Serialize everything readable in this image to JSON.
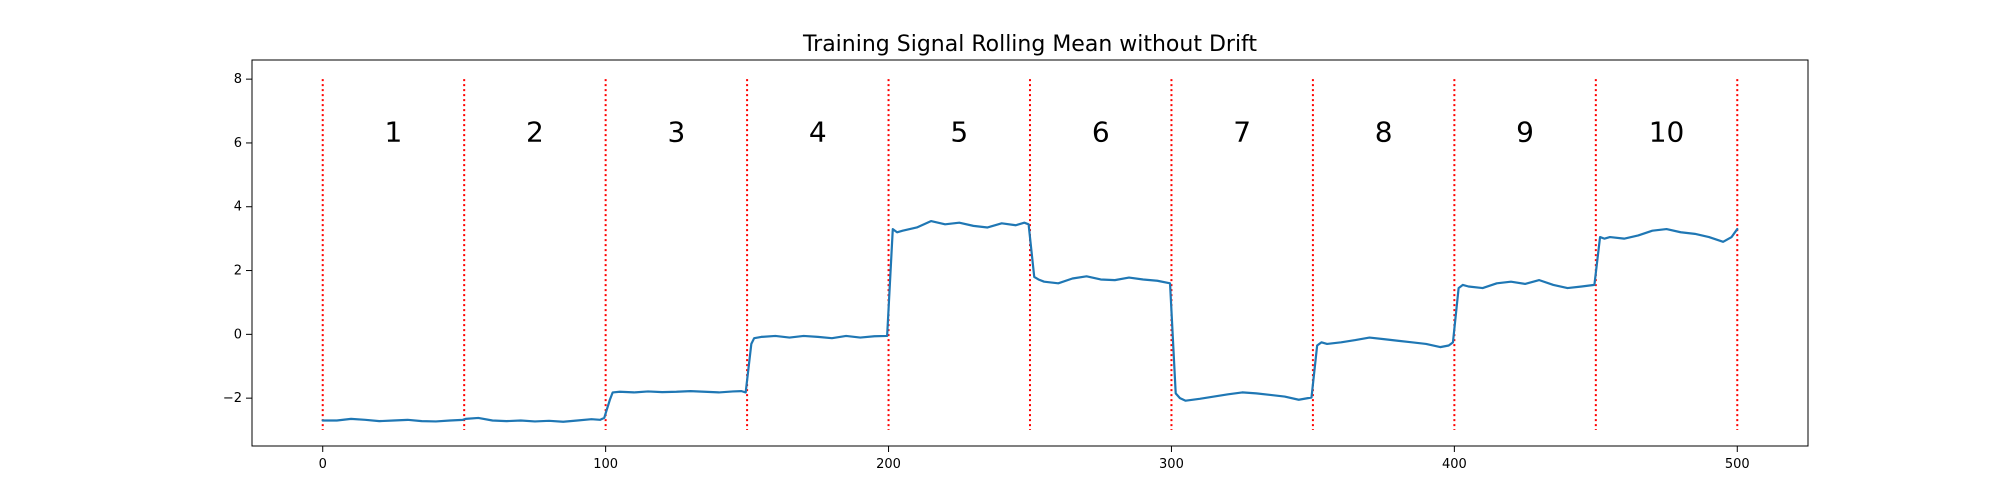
{
  "chart_data": {
    "type": "line",
    "title": "Training Signal Rolling Mean without Drift",
    "xlabel": "",
    "ylabel": "",
    "xlim": [
      -25,
      525
    ],
    "ylim": [
      -3.5,
      8.6
    ],
    "grid": false,
    "x_ticks": [
      0,
      100,
      200,
      300,
      400,
      500
    ],
    "x_tick_labels": [
      "0",
      "100",
      "200",
      "300",
      "400",
      "500"
    ],
    "y_ticks": [
      -2,
      0,
      2,
      4,
      6,
      8
    ],
    "y_tick_labels": [
      "−2",
      "0",
      "2",
      "4",
      "6",
      "8"
    ],
    "vertical_lines": {
      "x": [
        0,
        50,
        100,
        150,
        200,
        250,
        300,
        350,
        400,
        450,
        500
      ],
      "ymin": -3.0,
      "ymax": 8.0,
      "color": "#ff0000",
      "style": "dotted"
    },
    "segments": {
      "labels": [
        "1",
        "2",
        "3",
        "4",
        "5",
        "6",
        "7",
        "8",
        "9",
        "10"
      ],
      "label_y": 6.3
    },
    "series": [
      {
        "color": "#1f77b4",
        "points": [
          [
            0,
            -2.7
          ],
          [
            5,
            -2.7
          ],
          [
            10,
            -2.65
          ],
          [
            15,
            -2.68
          ],
          [
            20,
            -2.72
          ],
          [
            25,
            -2.7
          ],
          [
            30,
            -2.68
          ],
          [
            35,
            -2.72
          ],
          [
            40,
            -2.73
          ],
          [
            45,
            -2.7
          ],
          [
            49.5,
            -2.68
          ],
          [
            50.5,
            -2.65
          ],
          [
            55,
            -2.62
          ],
          [
            60,
            -2.7
          ],
          [
            65,
            -2.72
          ],
          [
            70,
            -2.7
          ],
          [
            75,
            -2.73
          ],
          [
            80,
            -2.71
          ],
          [
            85,
            -2.74
          ],
          [
            90,
            -2.7
          ],
          [
            95,
            -2.66
          ],
          [
            98,
            -2.68
          ],
          [
            99.5,
            -2.62
          ],
          [
            101.5,
            -2.05
          ],
          [
            102.5,
            -1.82
          ],
          [
            105,
            -1.8
          ],
          [
            110,
            -1.82
          ],
          [
            115,
            -1.79
          ],
          [
            120,
            -1.81
          ],
          [
            125,
            -1.8
          ],
          [
            130,
            -1.78
          ],
          [
            135,
            -1.8
          ],
          [
            140,
            -1.82
          ],
          [
            145,
            -1.79
          ],
          [
            148,
            -1.78
          ],
          [
            149.5,
            -1.82
          ],
          [
            151.5,
            -0.3
          ],
          [
            152.5,
            -0.12
          ],
          [
            155,
            -0.08
          ],
          [
            160,
            -0.05
          ],
          [
            165,
            -0.1
          ],
          [
            170,
            -0.05
          ],
          [
            175,
            -0.08
          ],
          [
            180,
            -0.12
          ],
          [
            185,
            -0.05
          ],
          [
            190,
            -0.1
          ],
          [
            195,
            -0.06
          ],
          [
            199.5,
            -0.05
          ],
          [
            201.5,
            3.3
          ],
          [
            203,
            3.2
          ],
          [
            205,
            3.25
          ],
          [
            210,
            3.35
          ],
          [
            215,
            3.55
          ],
          [
            220,
            3.45
          ],
          [
            225,
            3.5
          ],
          [
            230,
            3.4
          ],
          [
            235,
            3.35
          ],
          [
            240,
            3.48
          ],
          [
            245,
            3.42
          ],
          [
            248,
            3.5
          ],
          [
            249.5,
            3.45
          ],
          [
            251.5,
            1.8
          ],
          [
            253,
            1.72
          ],
          [
            255,
            1.65
          ],
          [
            260,
            1.6
          ],
          [
            265,
            1.75
          ],
          [
            270,
            1.82
          ],
          [
            275,
            1.72
          ],
          [
            280,
            1.7
          ],
          [
            285,
            1.78
          ],
          [
            290,
            1.72
          ],
          [
            295,
            1.68
          ],
          [
            299.5,
            1.6
          ],
          [
            301.5,
            -1.85
          ],
          [
            303,
            -2.0
          ],
          [
            305,
            -2.08
          ],
          [
            310,
            -2.02
          ],
          [
            315,
            -1.95
          ],
          [
            320,
            -1.88
          ],
          [
            325,
            -1.82
          ],
          [
            330,
            -1.85
          ],
          [
            335,
            -1.9
          ],
          [
            340,
            -1.95
          ],
          [
            345,
            -2.05
          ],
          [
            349.5,
            -1.98
          ],
          [
            351.5,
            -0.35
          ],
          [
            353,
            -0.25
          ],
          [
            355,
            -0.3
          ],
          [
            360,
            -0.25
          ],
          [
            365,
            -0.18
          ],
          [
            370,
            -0.1
          ],
          [
            375,
            -0.15
          ],
          [
            380,
            -0.2
          ],
          [
            385,
            -0.25
          ],
          [
            390,
            -0.3
          ],
          [
            395,
            -0.4
          ],
          [
            398,
            -0.35
          ],
          [
            399.5,
            -0.25
          ],
          [
            401.5,
            1.45
          ],
          [
            403,
            1.55
          ],
          [
            405,
            1.5
          ],
          [
            410,
            1.45
          ],
          [
            415,
            1.6
          ],
          [
            420,
            1.65
          ],
          [
            425,
            1.58
          ],
          [
            430,
            1.7
          ],
          [
            435,
            1.55
          ],
          [
            440,
            1.45
          ],
          [
            445,
            1.5
          ],
          [
            449.5,
            1.55
          ],
          [
            451.5,
            3.05
          ],
          [
            453,
            3.0
          ],
          [
            455,
            3.05
          ],
          [
            460,
            3.0
          ],
          [
            465,
            3.1
          ],
          [
            470,
            3.25
          ],
          [
            475,
            3.3
          ],
          [
            480,
            3.2
          ],
          [
            485,
            3.15
          ],
          [
            490,
            3.05
          ],
          [
            495,
            2.9
          ],
          [
            498,
            3.05
          ],
          [
            500,
            3.3
          ]
        ]
      }
    ]
  }
}
